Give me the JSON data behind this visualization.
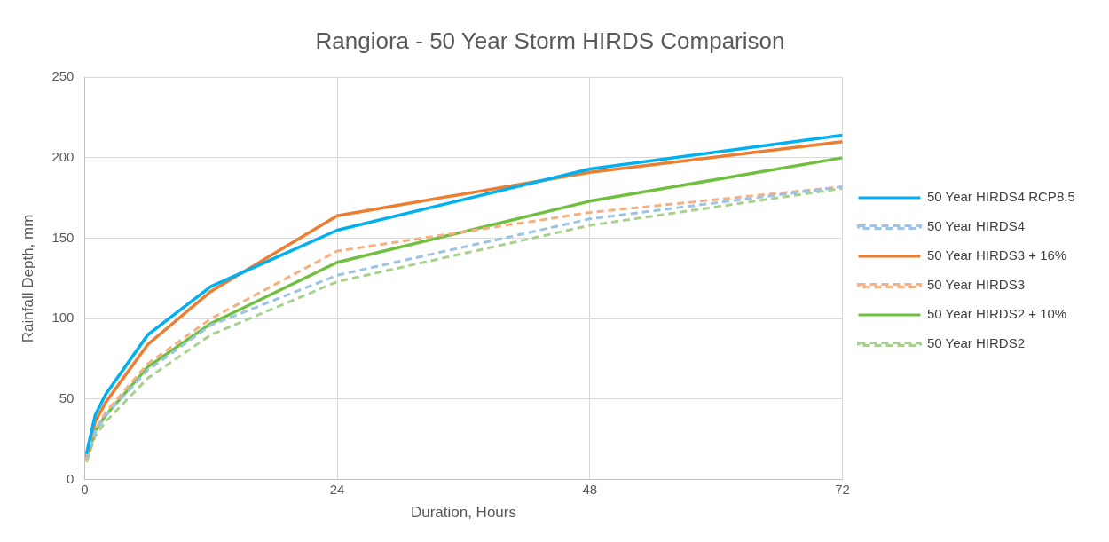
{
  "chart_data": {
    "type": "line",
    "title": "Rangiora - 50 Year Storm HIRDS Comparison",
    "xlabel": "Duration, Hours",
    "ylabel": "Rainfall Depth, mm",
    "x": [
      0.17,
      1,
      2,
      6,
      12,
      24,
      48,
      72
    ],
    "xlim": [
      0,
      72
    ],
    "xticks": [
      0,
      24,
      48,
      72
    ],
    "ylim": [
      0,
      250
    ],
    "yticks": [
      0,
      50,
      100,
      150,
      200,
      250
    ],
    "grid": true,
    "legend": "right",
    "marker": "none",
    "series": [
      {
        "name": "50 Year HIRDS4 RCP8.5",
        "color": "#00b0f0",
        "line_style": "solid",
        "values": [
          16,
          40,
          53,
          90,
          120,
          155,
          193,
          214
        ]
      },
      {
        "name": "50 Year HIRDS4",
        "color": "#9dc3e6",
        "line_style": "dashed",
        "values": [
          13,
          30,
          40,
          68,
          96,
          127,
          162,
          182
        ]
      },
      {
        "name": "50 Year HIRDS3 + 16%",
        "color": "#ed7d31",
        "line_style": "solid",
        "values": [
          14,
          36,
          48,
          84,
          117,
          164,
          191,
          210
        ]
      },
      {
        "name": "50 Year HIRDS3",
        "color": "#f4b183",
        "line_style": "dashed",
        "values": [
          12,
          31,
          42,
          72,
          100,
          142,
          166,
          182
        ]
      },
      {
        "name": "50 Year HIRDS2 + 10%",
        "color": "#70c040",
        "line_style": "solid",
        "values": [
          12,
          30,
          40,
          70,
          97,
          135,
          173,
          200
        ]
      },
      {
        "name": "50 Year HIRDS2",
        "color": "#a9d18e",
        "line_style": "dashed",
        "values": [
          11,
          27,
          36,
          63,
          90,
          123,
          158,
          181
        ]
      }
    ]
  }
}
